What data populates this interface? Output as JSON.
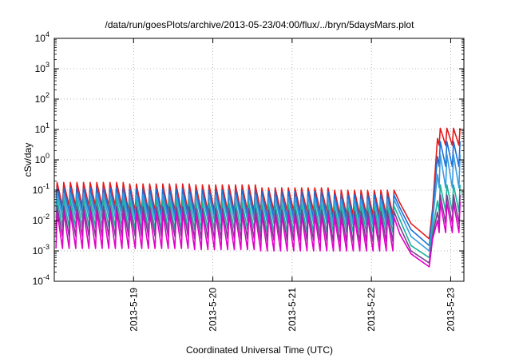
{
  "chart_data": {
    "type": "line",
    "title": "/data/run/goesPlots/archive/2013-05-23/04:00/flux/../bryn/5daysMars.plot",
    "xlabel": "Coordinated Universal Time (UTC)",
    "ylabel": "cSv/day",
    "y_scale": "log",
    "ylim": [
      0.0001,
      10000
    ],
    "y_ticks": [
      {
        "value": 0.0001,
        "base": "10",
        "exp": "-4"
      },
      {
        "value": 0.001,
        "base": "10",
        "exp": "-3"
      },
      {
        "value": 0.01,
        "base": "10",
        "exp": "-2"
      },
      {
        "value": 0.1,
        "base": "10",
        "exp": "-1"
      },
      {
        "value": 1,
        "base": "10",
        "exp": "0"
      },
      {
        "value": 10,
        "base": "10",
        "exp": "1"
      },
      {
        "value": 100,
        "base": "10",
        "exp": "2"
      },
      {
        "value": 1000,
        "base": "10",
        "exp": "3"
      },
      {
        "value": 10000,
        "base": "10",
        "exp": "4"
      }
    ],
    "xlim": [
      "2013-05-18 00:00",
      "2013-05-23 04:00"
    ],
    "x_ticks": [
      "2013-5-19",
      "2013-5-20",
      "2013-5-21",
      "2013-5-22",
      "2013-5-23"
    ],
    "x_tick_values": [
      "2013-05-19 00:00",
      "2013-05-20 00:00",
      "2013-05-21 00:00",
      "2013-05-22 00:00",
      "2013-05-23 00:00"
    ],
    "grid": true,
    "legend": "none",
    "pattern": "sawtooth: sharp rise every ~2 h followed by decay; quiet period then dip near 2013-05-22 12:00; sharp rise near 2013-05-22 20:00",
    "series": [
      {
        "color": "#e41a1c",
        "peak_values": [
          0.18,
          0.16,
          0.15,
          0.12,
          0.1,
          0.008,
          11.0
        ],
        "trough_values": [
          0.03,
          0.02,
          0.02,
          0.02,
          0.015,
          0.0025,
          3.0
        ]
      },
      {
        "color": "#1a6fd6",
        "peak_values": [
          0.12,
          0.11,
          0.1,
          0.09,
          0.07,
          0.005,
          4.0
        ],
        "trough_values": [
          0.02,
          0.015,
          0.015,
          0.012,
          0.01,
          0.0015,
          0.6
        ]
      },
      {
        "color": "#3a9be0",
        "peak_values": [
          0.08,
          0.07,
          0.07,
          0.06,
          0.05,
          0.003,
          1.5
        ],
        "trough_values": [
          0.012,
          0.01,
          0.01,
          0.008,
          0.007,
          0.001,
          0.12
        ]
      },
      {
        "color": "#17b39b",
        "peak_values": [
          0.05,
          0.045,
          0.04,
          0.035,
          0.03,
          0.0015,
          0.15
        ],
        "trough_values": [
          0.006,
          0.005,
          0.005,
          0.004,
          0.004,
          0.0006,
          0.02
        ]
      },
      {
        "color": "#7a3d8f",
        "peak_values": [
          0.03,
          0.028,
          0.025,
          0.022,
          0.02,
          0.001,
          0.07
        ],
        "trough_values": [
          0.003,
          0.003,
          0.0025,
          0.0022,
          0.002,
          0.0004,
          0.008
        ]
      },
      {
        "color": "#e000c8",
        "peak_values": [
          0.02,
          0.018,
          0.016,
          0.015,
          0.013,
          0.0008,
          0.04
        ],
        "trough_values": [
          0.0012,
          0.0012,
          0.0011,
          0.001,
          0.001,
          0.0003,
          0.004
        ]
      }
    ]
  }
}
